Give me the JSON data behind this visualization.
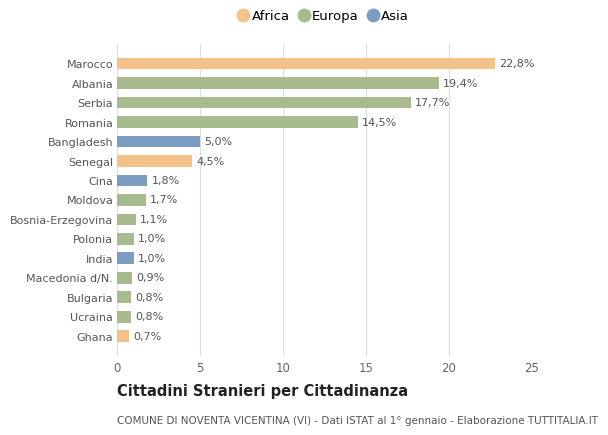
{
  "countries": [
    "Marocco",
    "Albania",
    "Serbia",
    "Romania",
    "Bangladesh",
    "Senegal",
    "Cina",
    "Moldova",
    "Bosnia-Erzegovina",
    "Polonia",
    "India",
    "Macedonia d/N.",
    "Bulgaria",
    "Ucraina",
    "Ghana"
  ],
  "values": [
    22.8,
    19.4,
    17.7,
    14.5,
    5.0,
    4.5,
    1.8,
    1.7,
    1.1,
    1.0,
    1.0,
    0.9,
    0.8,
    0.8,
    0.7
  ],
  "labels": [
    "22,8%",
    "19,4%",
    "17,7%",
    "14,5%",
    "5,0%",
    "4,5%",
    "1,8%",
    "1,7%",
    "1,1%",
    "1,0%",
    "1,0%",
    "0,9%",
    "0,8%",
    "0,8%",
    "0,7%"
  ],
  "continents": [
    "Africa",
    "Europa",
    "Europa",
    "Europa",
    "Asia",
    "Africa",
    "Asia",
    "Europa",
    "Europa",
    "Europa",
    "Asia",
    "Europa",
    "Europa",
    "Europa",
    "Africa"
  ],
  "colors": {
    "Africa": "#F5C18A",
    "Europa": "#A8BB8E",
    "Asia": "#7B9DC2"
  },
  "xlim": [
    0,
    25
  ],
  "xticks": [
    0,
    5,
    10,
    15,
    20,
    25
  ],
  "title": "Cittadini Stranieri per Cittadinanza",
  "subtitle": "COMUNE DI NOVENTA VICENTINA (VI) - Dati ISTAT al 1° gennaio - Elaborazione TUTTITALIA.IT",
  "background_color": "#ffffff",
  "bar_height": 0.6,
  "grid_color": "#dddddd",
  "label_fontsize": 8.0,
  "ytick_fontsize": 8.0,
  "xtick_fontsize": 8.5,
  "title_fontsize": 10.5,
  "subtitle_fontsize": 7.5,
  "legend_fontsize": 9.5
}
